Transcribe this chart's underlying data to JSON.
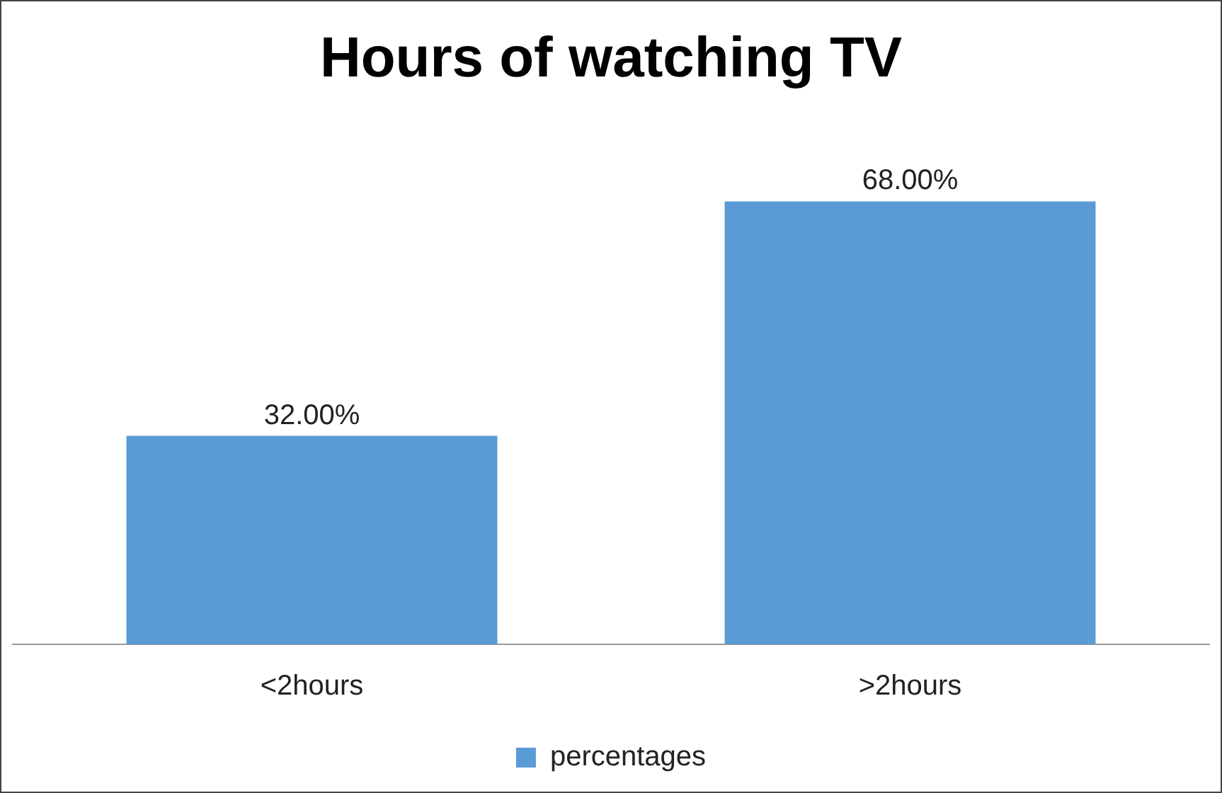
{
  "chart_data": {
    "type": "bar",
    "title": "Hours of watching TV",
    "categories": [
      "<2hours",
      ">2hours"
    ],
    "series": [
      {
        "name": "percentages",
        "color": "#5b9bd5",
        "values": [
          32,
          68
        ],
        "value_labels": [
          "32.00%",
          "68.00%"
        ]
      }
    ],
    "legend": "bottom",
    "grid": false
  }
}
